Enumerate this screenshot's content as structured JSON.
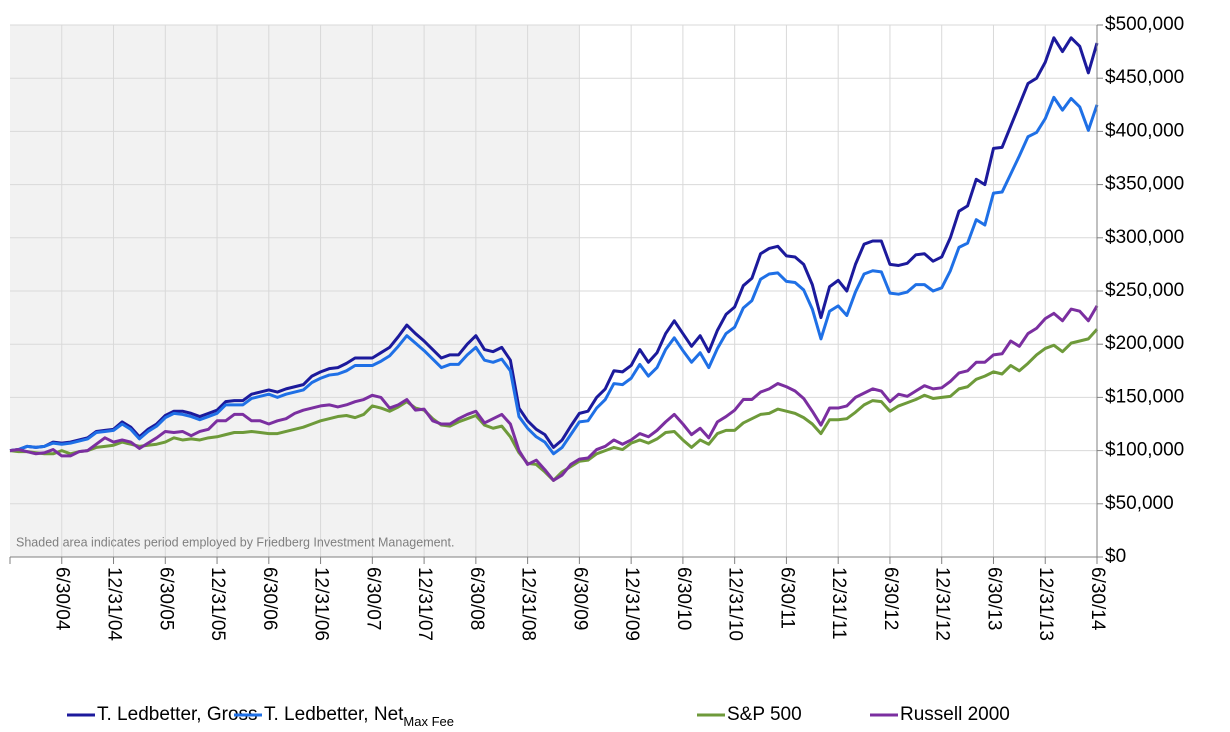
{
  "chart_data": {
    "type": "line",
    "annotation": "Shaded area indicates period employed by Friedberg Investment Management.",
    "shaded_until": "6/30/09",
    "categories": [
      null,
      null,
      null,
      null,
      null,
      null,
      "6/30/04",
      null,
      null,
      null,
      null,
      null,
      "12/31/04",
      null,
      null,
      null,
      null,
      null,
      "6/30/05",
      null,
      null,
      null,
      null,
      null,
      "12/31/05",
      null,
      null,
      null,
      null,
      null,
      "6/30/06",
      null,
      null,
      null,
      null,
      null,
      "12/31/06",
      null,
      null,
      null,
      null,
      null,
      "6/30/07",
      null,
      null,
      null,
      null,
      null,
      "12/31/07",
      null,
      null,
      null,
      null,
      null,
      "6/30/08",
      null,
      null,
      null,
      null,
      null,
      "12/31/08",
      null,
      null,
      null,
      null,
      null,
      "6/30/09",
      null,
      null,
      null,
      null,
      null,
      "12/31/09",
      null,
      null,
      null,
      null,
      null,
      "6/30/10",
      null,
      null,
      null,
      null,
      null,
      "12/31/10",
      null,
      null,
      null,
      null,
      null,
      "6/30/11",
      null,
      null,
      null,
      null,
      null,
      "12/31/11",
      null,
      null,
      null,
      null,
      null,
      "6/30/12",
      null,
      null,
      null,
      null,
      null,
      "12/31/12",
      null,
      null,
      null,
      null,
      null,
      "6/30/13",
      null,
      null,
      null,
      null,
      null,
      "12/31/13",
      null,
      null,
      null,
      null,
      null,
      "6/30/14"
    ],
    "series": [
      {
        "name": "T. Ledbetter, Gross",
        "color": "#1c1a9c",
        "values": [
          100000,
          101000,
          104000,
          103000,
          104000,
          108000,
          107000,
          108000,
          110000,
          112000,
          118000,
          119000,
          120000,
          127000,
          122000,
          113000,
          120000,
          125000,
          133000,
          137000,
          137000,
          135000,
          132000,
          135000,
          138000,
          146000,
          147000,
          147000,
          153000,
          155000,
          157000,
          155000,
          158000,
          160000,
          162000,
          170000,
          174000,
          177000,
          178000,
          182000,
          187000,
          187000,
          187000,
          192000,
          197000,
          207000,
          218000,
          210000,
          203000,
          195000,
          187000,
          190000,
          190000,
          200000,
          208000,
          195000,
          193000,
          197000,
          185000,
          140000,
          128000,
          120000,
          115000,
          103000,
          110000,
          123000,
          135000,
          137000,
          150000,
          158000,
          175000,
          174000,
          180000,
          195000,
          183000,
          192000,
          210000,
          222000,
          210000,
          198000,
          208000,
          193000,
          213000,
          228000,
          235000,
          255000,
          262000,
          285000,
          290000,
          292000,
          283000,
          282000,
          275000,
          256000,
          225000,
          254000,
          260000,
          250000,
          275000,
          294000,
          297000,
          297000,
          275000,
          274000,
          276000,
          284000,
          285000,
          278000,
          282000,
          300000,
          325000,
          330000,
          355000,
          350000,
          384000,
          385000,
          405000,
          425000,
          445000,
          450000,
          465000,
          488000,
          475000,
          488000,
          480000,
          455000,
          483000
        ]
      },
      {
        "name": "T. Ledbetter, Net",
        "name_subscript": "Max Fee",
        "color": "#1f70e6",
        "values": [
          100000,
          101000,
          104000,
          103000,
          104000,
          107000,
          106000,
          107000,
          109000,
          111000,
          117000,
          118000,
          119000,
          125000,
          120000,
          111000,
          118000,
          123000,
          131000,
          135000,
          134000,
          132000,
          129000,
          132000,
          135000,
          143000,
          143000,
          143000,
          149000,
          151000,
          153000,
          150000,
          153000,
          155000,
          157000,
          164000,
          168000,
          171000,
          172000,
          175000,
          180000,
          180000,
          180000,
          184000,
          189000,
          198000,
          208000,
          201000,
          194000,
          186000,
          178000,
          181000,
          181000,
          190000,
          197000,
          185000,
          183000,
          186000,
          175000,
          132000,
          121000,
          113000,
          108000,
          97000,
          103000,
          115000,
          127000,
          128000,
          140000,
          148000,
          163000,
          162000,
          168000,
          181000,
          170000,
          178000,
          195000,
          206000,
          194000,
          183000,
          192000,
          178000,
          196000,
          210000,
          216000,
          234000,
          241000,
          261000,
          266000,
          267000,
          259000,
          258000,
          251000,
          233000,
          205000,
          231000,
          236000,
          227000,
          249000,
          266000,
          269000,
          268000,
          248000,
          247000,
          249000,
          256000,
          256000,
          250000,
          253000,
          269000,
          291000,
          295000,
          317000,
          312000,
          342000,
          343000,
          360000,
          377000,
          395000,
          399000,
          412000,
          432000,
          420000,
          431000,
          423000,
          401000,
          425000
        ]
      },
      {
        "name": "S&P 500",
        "color": "#6e9a3a",
        "values": [
          100000,
          99000,
          99000,
          98000,
          97000,
          97000,
          100000,
          97000,
          99000,
          100000,
          103000,
          104000,
          105000,
          108000,
          106000,
          104000,
          105000,
          106000,
          108000,
          112000,
          110000,
          111000,
          110000,
          112000,
          113000,
          115000,
          117000,
          117000,
          118000,
          117000,
          116000,
          116000,
          118000,
          120000,
          122000,
          125000,
          128000,
          130000,
          132000,
          133000,
          131000,
          134000,
          142000,
          140000,
          137000,
          141000,
          146000,
          140000,
          138000,
          130000,
          124000,
          123000,
          127000,
          130000,
          133000,
          124000,
          121000,
          123000,
          113000,
          98000,
          88000,
          87000,
          80000,
          72000,
          80000,
          85000,
          90000,
          91000,
          97000,
          100000,
          103000,
          101000,
          107000,
          110000,
          107000,
          111000,
          117000,
          118000,
          110000,
          103000,
          110000,
          106000,
          116000,
          119000,
          119000,
          126000,
          130000,
          134000,
          135000,
          139000,
          137000,
          135000,
          131000,
          125000,
          116000,
          129000,
          129000,
          130000,
          136000,
          143000,
          147000,
          146000,
          137000,
          142000,
          145000,
          148000,
          152000,
          149000,
          150000,
          151000,
          158000,
          160000,
          167000,
          170000,
          174000,
          172000,
          180000,
          175000,
          182000,
          190000,
          196000,
          199000,
          193000,
          201000,
          203000,
          205000,
          214000
        ]
      },
      {
        "name": "Russell 2000",
        "color": "#7b2fa0",
        "values": [
          100000,
          101000,
          99000,
          97000,
          98000,
          101000,
          95000,
          95000,
          99000,
          100000,
          106000,
          112000,
          108000,
          110000,
          108000,
          102000,
          107000,
          112000,
          118000,
          117000,
          118000,
          114000,
          118000,
          120000,
          128000,
          128000,
          134000,
          134000,
          128000,
          128000,
          125000,
          128000,
          130000,
          135000,
          138000,
          140000,
          142000,
          143000,
          141000,
          143000,
          146000,
          148000,
          152000,
          150000,
          140000,
          143000,
          148000,
          138000,
          139000,
          128000,
          125000,
          125000,
          130000,
          134000,
          137000,
          126000,
          130000,
          134000,
          125000,
          100000,
          87000,
          91000,
          82000,
          72000,
          77000,
          87000,
          92000,
          93000,
          101000,
          104000,
          110000,
          106000,
          110000,
          116000,
          113000,
          119000,
          127000,
          134000,
          125000,
          115000,
          121000,
          112000,
          127000,
          132000,
          138000,
          148000,
          148000,
          155000,
          158000,
          163000,
          160000,
          156000,
          149000,
          137000,
          124000,
          140000,
          140000,
          142000,
          150000,
          154000,
          158000,
          156000,
          146000,
          153000,
          151000,
          156000,
          161000,
          158000,
          159000,
          165000,
          173000,
          175000,
          183000,
          183000,
          190000,
          191000,
          203000,
          198000,
          210000,
          215000,
          224000,
          229000,
          222000,
          233000,
          231000,
          222000,
          236000
        ]
      }
    ],
    "ylim": [
      0,
      500000
    ],
    "yticks": [
      {
        "value": 0,
        "label": "$0"
      },
      {
        "value": 50000,
        "label": "$50,000"
      },
      {
        "value": 100000,
        "label": "$100,000"
      },
      {
        "value": 150000,
        "label": "$150,000"
      },
      {
        "value": 200000,
        "label": "$200,000"
      },
      {
        "value": 250000,
        "label": "$250,000"
      },
      {
        "value": 300000,
        "label": "$300,000"
      },
      {
        "value": 350000,
        "label": "$350,000"
      },
      {
        "value": 400000,
        "label": "$400,000"
      },
      {
        "value": 450000,
        "label": "$450,000"
      },
      {
        "value": 500000,
        "label": "$500,000"
      }
    ],
    "grid": true,
    "legend": "bottom"
  }
}
